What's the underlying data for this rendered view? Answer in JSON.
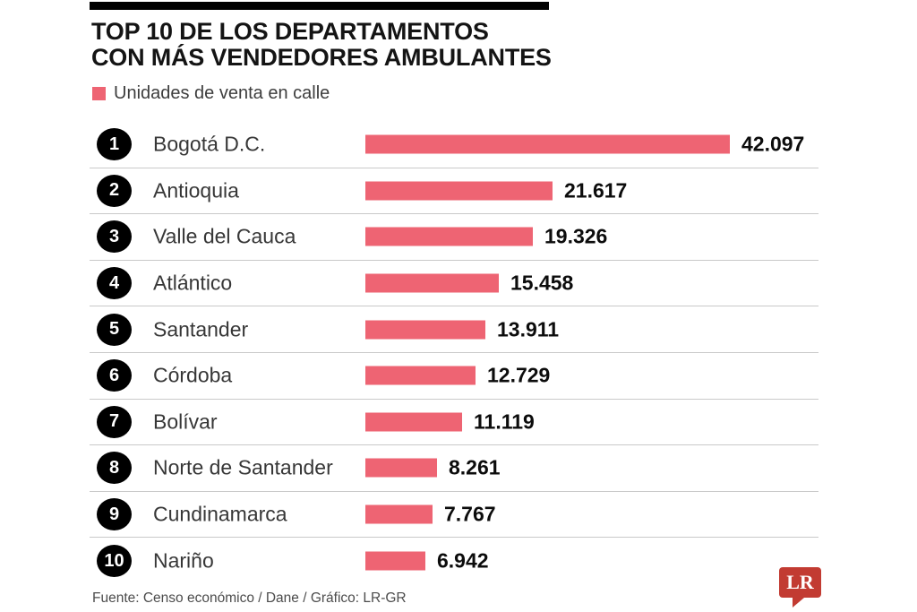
{
  "header": {
    "title_line1": "TOP 10 DE LOS DEPARTAMENTOS",
    "title_line2": "CON MÁS VENDEDORES AMBULANTES",
    "legend_label": "Unidades de venta en calle"
  },
  "chart_data": {
    "type": "bar",
    "orientation": "horizontal",
    "title": "TOP 10 DE LOS DEPARTAMENTOS CON MÁS VENDEDORES AMBULANTES",
    "legend": [
      "Unidades de venta en calle"
    ],
    "legend_position": "top-left",
    "grid": false,
    "ranks": [
      "1",
      "2",
      "3",
      "4",
      "5",
      "6",
      "7",
      "8",
      "9",
      "10"
    ],
    "categories": [
      "Bogotá D.C.",
      "Antioquia",
      "Valle del Cauca",
      "Atlántico",
      "Santander",
      "Córdoba",
      "Bolívar",
      "Norte de Santander",
      "Cundinamarca",
      "Nariño"
    ],
    "values": [
      42097,
      21617,
      19326,
      15458,
      13911,
      12729,
      11119,
      8261,
      7767,
      6942
    ],
    "value_labels": [
      "42.097",
      "21.617",
      "19.326",
      "15.458",
      "13.911",
      "12.729",
      "11.119",
      "8.261",
      "7.767",
      "6.942"
    ],
    "max_value": 42097,
    "xlabel": "",
    "ylabel": ""
  },
  "footer": {
    "source": "Fuente: Censo económico / Dane / Gráfico: LR-GR",
    "logo_text": "LR"
  },
  "colors": {
    "bar": "#ee6473",
    "badge": "#000000",
    "logo": "#c23b32",
    "divider": "#c9c9c9",
    "title_text": "#141414",
    "value_text": "#0c0c0c"
  }
}
